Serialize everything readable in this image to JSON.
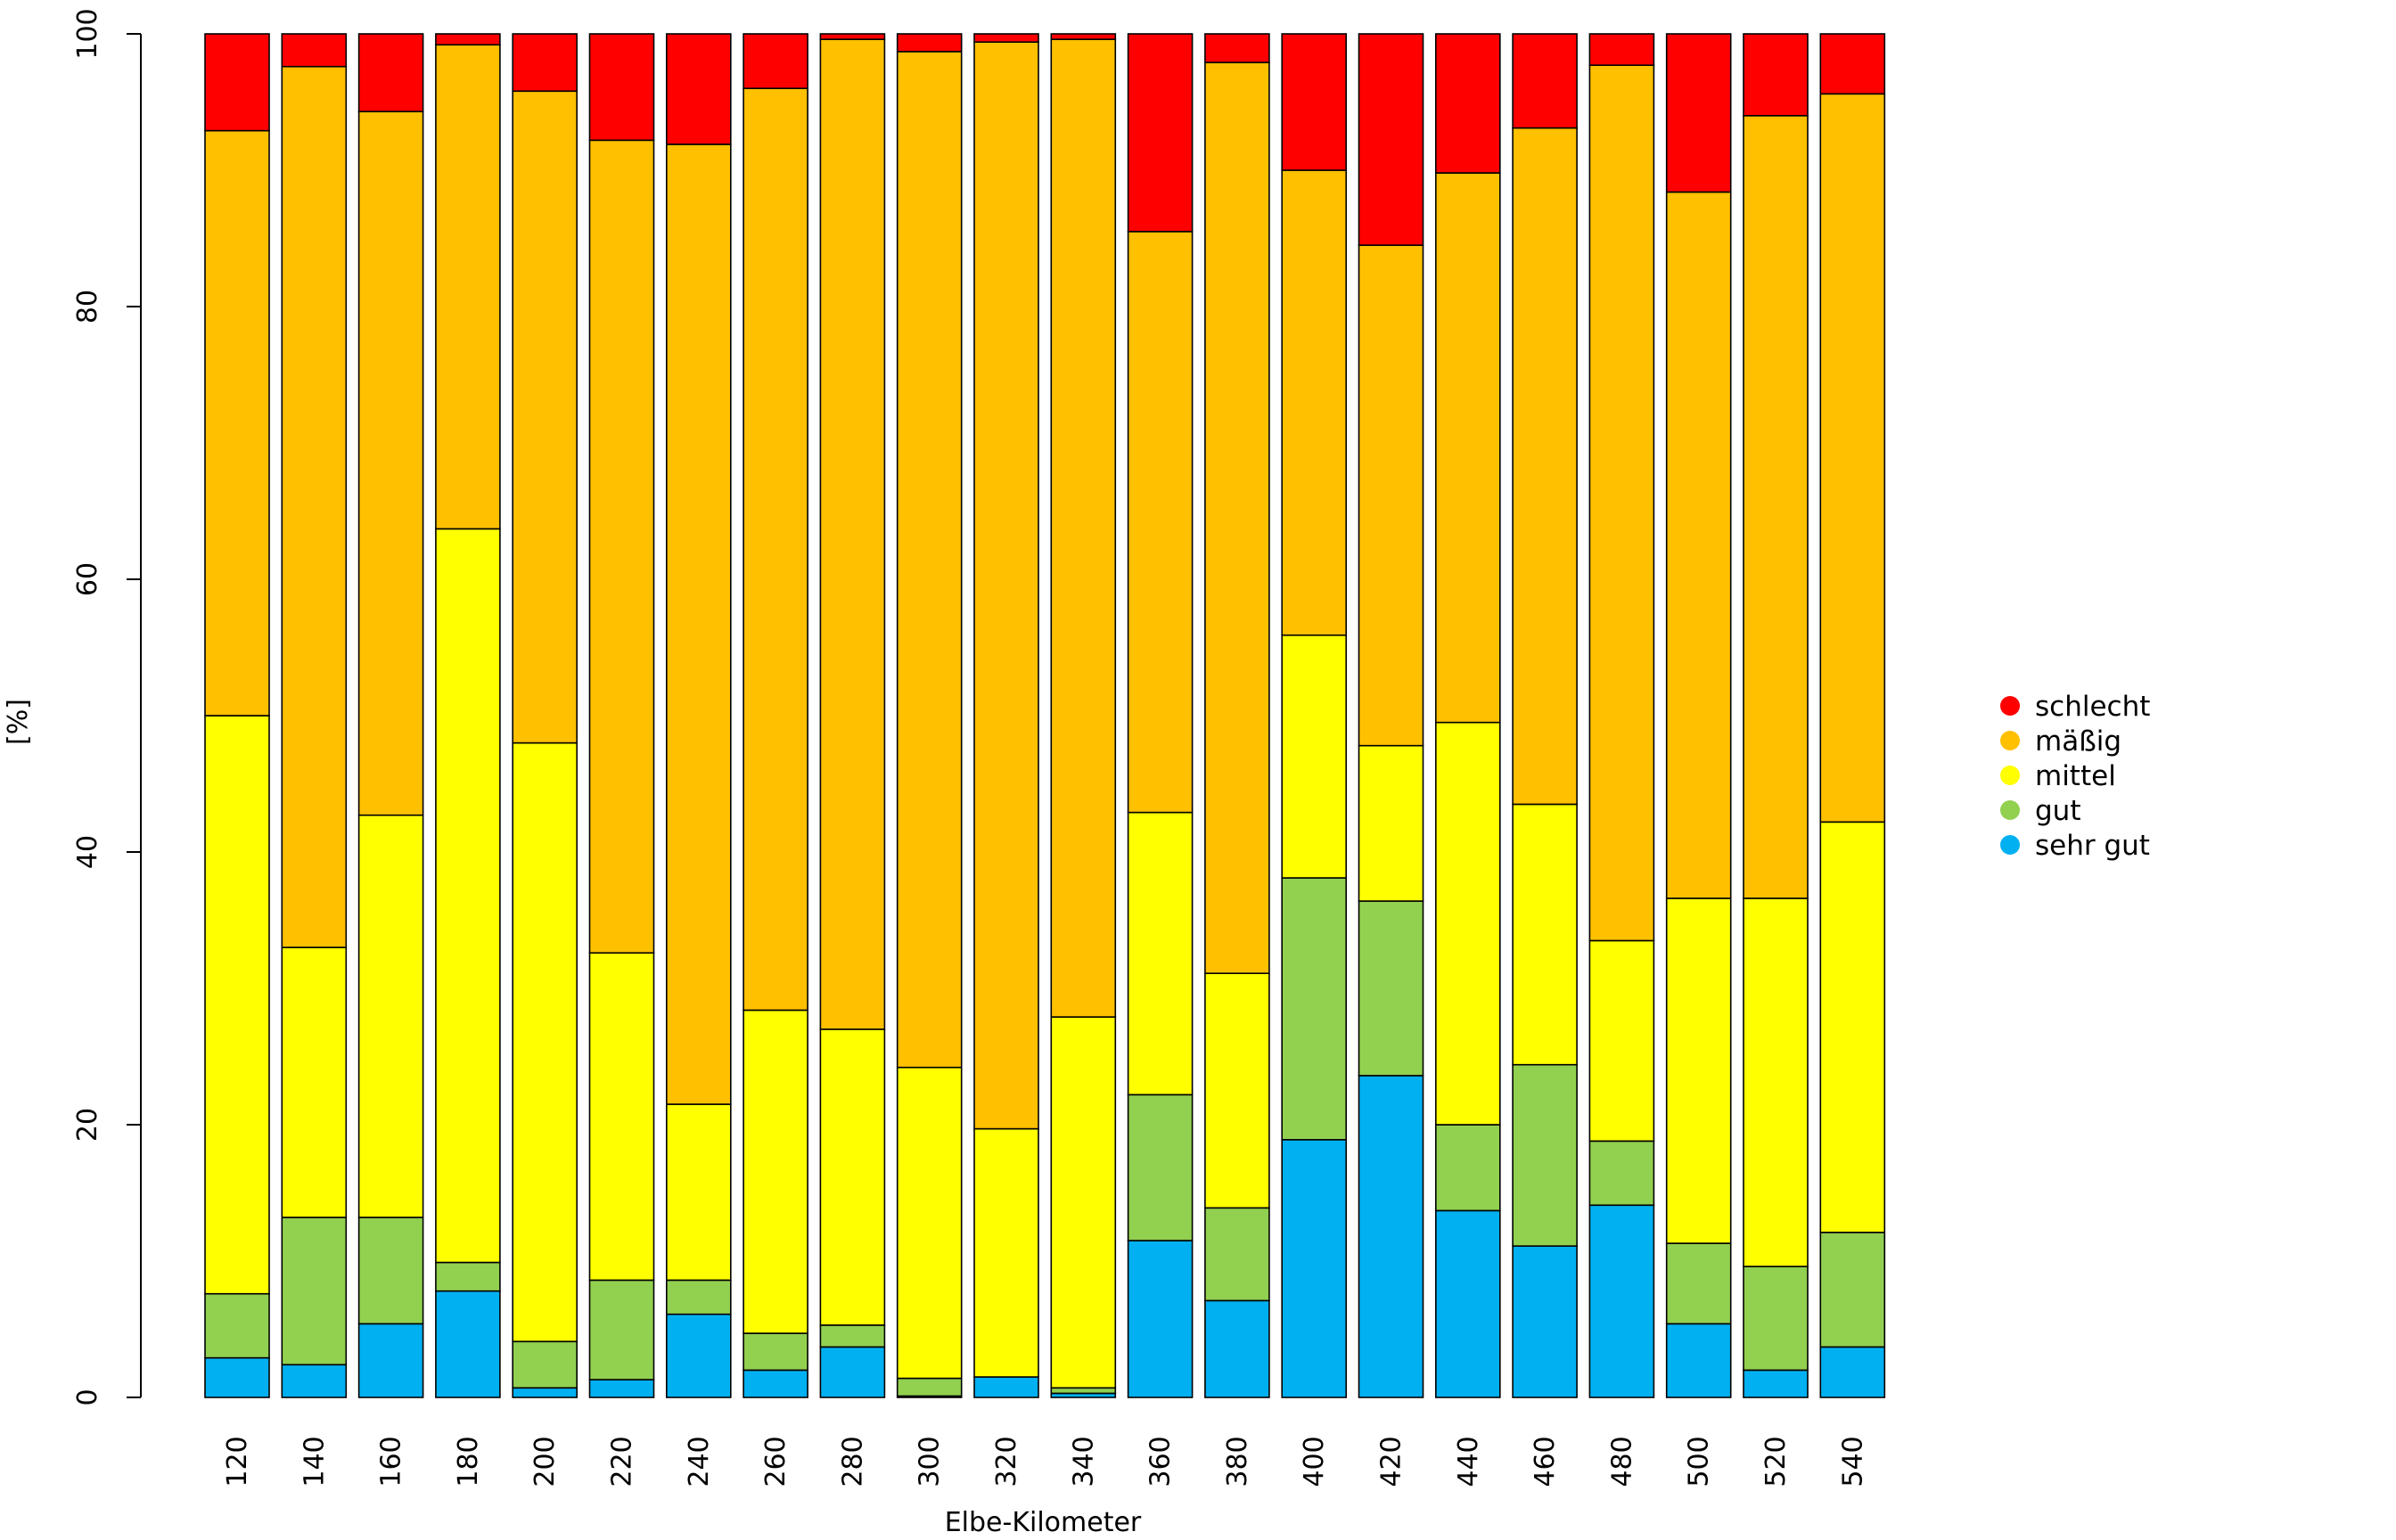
{
  "chart_data": {
    "type": "bar",
    "stacked": true,
    "title": "",
    "xlabel": "Elbe-Kilometer",
    "ylabel": "[%]",
    "ylim": [
      0,
      100
    ],
    "yticks": [
      "0",
      "20",
      "40",
      "60",
      "80",
      "100"
    ],
    "grid": false,
    "legend_position": "right",
    "categories": [
      "120",
      "140",
      "160",
      "180",
      "200",
      "220",
      "240",
      "260",
      "280",
      "300",
      "320",
      "340",
      "360",
      "380",
      "400",
      "420",
      "440",
      "460",
      "480",
      "500",
      "520",
      "540"
    ],
    "series": [
      {
        "name": "sehr gut",
        "color": "#00b0f0",
        "values": [
          2.9,
          2.4,
          5.4,
          7.8,
          0.7,
          1.3,
          6.1,
          2.0,
          3.7,
          0.1,
          1.5,
          0.3,
          11.5,
          7.1,
          18.9,
          23.6,
          13.7,
          11.1,
          14.1,
          5.4,
          2.0,
          3.7
        ]
      },
      {
        "name": "gut",
        "color": "#92d050",
        "values": [
          4.7,
          10.8,
          7.8,
          2.1,
          3.4,
          7.3,
          2.5,
          2.7,
          1.6,
          1.3,
          0.0,
          0.4,
          10.7,
          6.8,
          19.2,
          12.8,
          6.3,
          13.3,
          4.7,
          5.9,
          7.6,
          8.4
        ]
      },
      {
        "name": "mittel",
        "color": "#ffff00",
        "values": [
          42.4,
          19.8,
          29.5,
          53.8,
          43.9,
          24.0,
          12.9,
          23.7,
          21.7,
          22.8,
          18.2,
          27.2,
          20.7,
          17.2,
          17.8,
          11.4,
          29.5,
          19.1,
          14.7,
          25.3,
          27.0,
          30.1
        ]
      },
      {
        "name": "mäßig",
        "color": "#ffc000",
        "values": [
          42.9,
          64.6,
          51.6,
          35.5,
          47.8,
          59.6,
          70.4,
          67.6,
          72.6,
          74.5,
          79.7,
          71.7,
          42.6,
          66.8,
          34.1,
          36.7,
          40.3,
          49.6,
          64.2,
          51.8,
          57.4,
          53.4
        ]
      },
      {
        "name": "schlecht",
        "color": "#ff0000",
        "values": [
          7.1,
          2.4,
          5.7,
          0.8,
          4.2,
          7.8,
          8.1,
          4.0,
          0.4,
          1.3,
          0.6,
          0.4,
          14.5,
          2.1,
          10.0,
          15.5,
          10.2,
          6.9,
          2.3,
          11.6,
          6.0,
          4.4
        ]
      }
    ],
    "legend": [
      "schlecht",
      "mäßig",
      "mittel",
      "gut",
      "sehr gut"
    ]
  }
}
